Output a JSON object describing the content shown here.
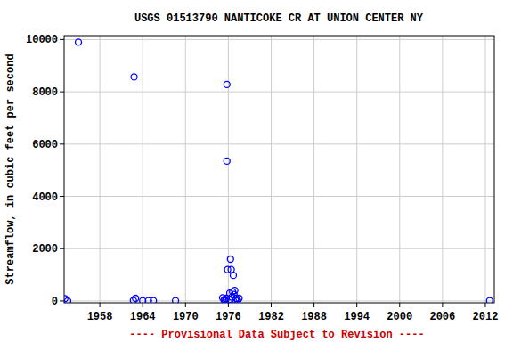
{
  "chart_data": {
    "type": "scatter",
    "title": "USGS 01513790 NANTICOKE CR AT UNION CENTER NY",
    "y_label": "Streamflow, in cubic feet per second",
    "annotation": "---- Provisional Data Subject to Revision ----",
    "x": [
      1953.1,
      1953.5,
      1955.0,
      1962.8,
      1962.7,
      1963.0,
      1964.0,
      1964.8,
      1965.5,
      1968.6,
      1975.2,
      1975.4,
      1975.5,
      1975.6,
      1975.7,
      1975.8,
      1975.8,
      1975.9,
      1976.1,
      1976.2,
      1976.3,
      1976.4,
      1976.5,
      1976.6,
      1976.7,
      1976.8,
      1976.9,
      1977.0,
      1977.1,
      1977.3,
      1977.5,
      2012.6
    ],
    "values": [
      90,
      0,
      9900,
      8570,
      20,
      100,
      10,
      10,
      10,
      10,
      120,
      30,
      60,
      10,
      100,
      8280,
      5350,
      1200,
      50,
      300,
      1600,
      1200,
      150,
      350,
      980,
      250,
      400,
      30,
      100,
      20,
      100,
      10
    ],
    "xlim": [
      1953,
      2013.25
    ],
    "xticks": [
      1958,
      1964,
      1970,
      1976,
      1982,
      1988,
      1994,
      2000,
      2006,
      2012
    ],
    "ylim": [
      -70,
      10150
    ],
    "yticks": [
      0,
      2000,
      4000,
      6000,
      8000,
      10000
    ],
    "grid": true,
    "color": "#0000ff",
    "marker": "circle"
  }
}
